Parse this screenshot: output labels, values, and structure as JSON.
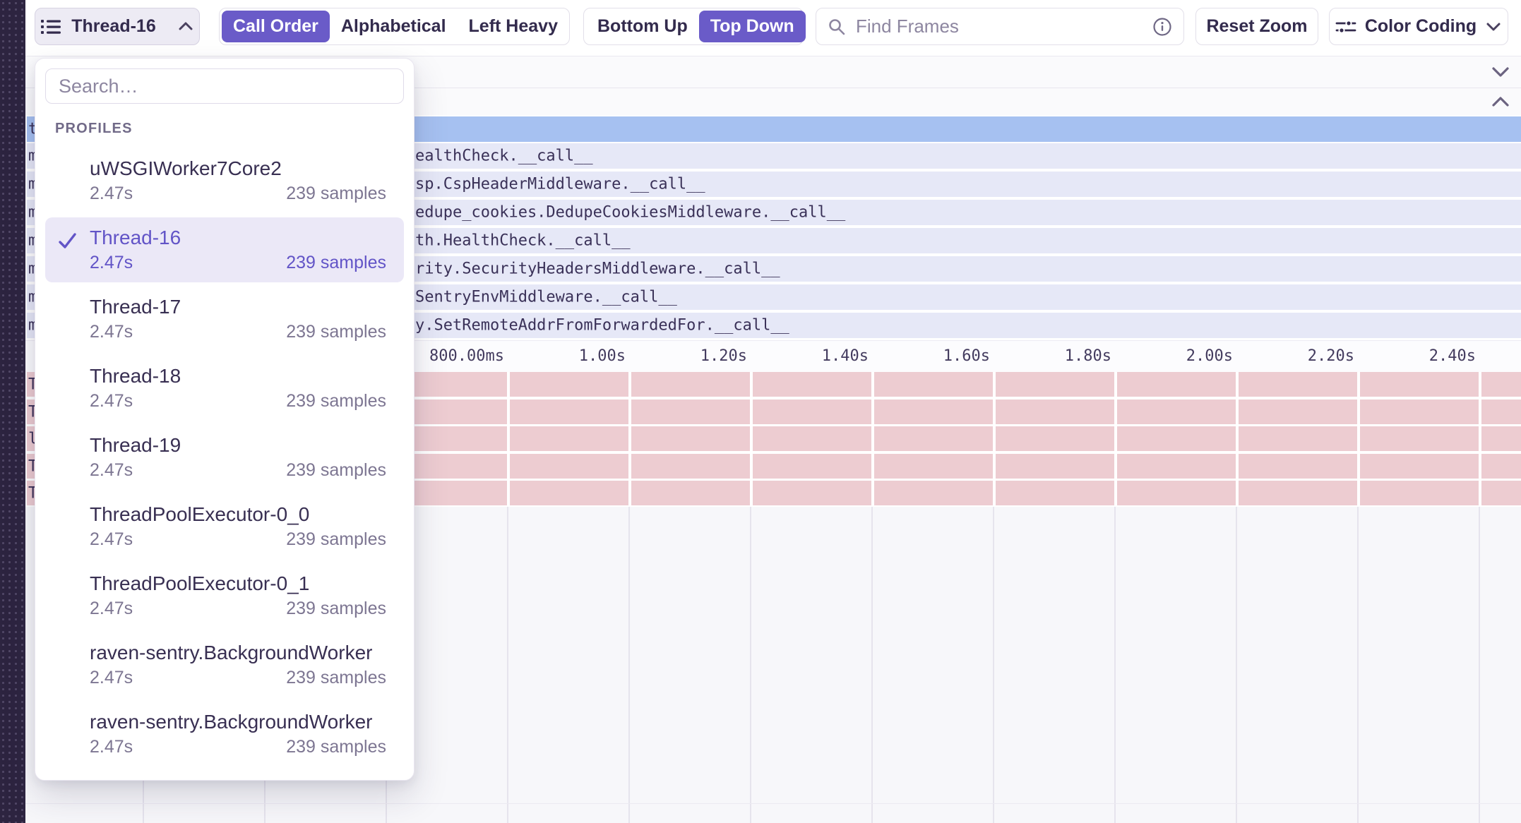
{
  "colors": {
    "accent": "#6a5bc8",
    "selection-blue": "#a6c1f1",
    "frame-lavender": "#e6e8f7",
    "frame-pink": "#edccd1",
    "sidebar": "#2d2440"
  },
  "toolbar": {
    "thread_label": "Thread-16",
    "call_order": "Call Order",
    "alphabetical": "Alphabetical",
    "left_heavy": "Left Heavy",
    "bottom_up": "Bottom Up",
    "top_down": "Top Down",
    "find_frames_placeholder": "Find Frames",
    "reset_zoom": "Reset Zoom",
    "color_coding": "Color Coding"
  },
  "dropdown": {
    "search_placeholder": "Search…",
    "section_label": "PROFILES",
    "items": [
      {
        "name": "uWSGIWorker7Core2",
        "duration": "2.47s",
        "samples": "239 samples",
        "selected": false
      },
      {
        "name": "Thread-16",
        "duration": "2.47s",
        "samples": "239 samples",
        "selected": true
      },
      {
        "name": "Thread-17",
        "duration": "2.47s",
        "samples": "239 samples",
        "selected": false
      },
      {
        "name": "Thread-18",
        "duration": "2.47s",
        "samples": "239 samples",
        "selected": false
      },
      {
        "name": "Thread-19",
        "duration": "2.47s",
        "samples": "239 samples",
        "selected": false
      },
      {
        "name": "ThreadPoolExecutor-0_0",
        "duration": "2.47s",
        "samples": "239 samples",
        "selected": false
      },
      {
        "name": "ThreadPoolExecutor-0_1",
        "duration": "2.47s",
        "samples": "239 samples",
        "selected": false
      },
      {
        "name": "raven-sentry.BackgroundWorker",
        "duration": "2.47s",
        "samples": "239 samples",
        "selected": false
      },
      {
        "name": "raven-sentry.BackgroundWorker",
        "duration": "2.47s",
        "samples": "239 samples",
        "selected": false
      }
    ]
  },
  "flame": {
    "root_fragment": "t",
    "rows": [
      {
        "left": "m",
        "text": "ealthCheck.__call__"
      },
      {
        "left": "m",
        "text": "sp.CspHeaderMiddleware.__call__"
      },
      {
        "left": "m",
        "text": "edupe_cookies.DedupeCookiesMiddleware.__call__"
      },
      {
        "left": "m",
        "text": "th.HealthCheck.__call__"
      },
      {
        "left": "m",
        "text": "rity.SecurityHeadersMiddleware.__call__"
      },
      {
        "left": "m",
        "text": "SentryEnvMiddleware.__call__"
      },
      {
        "left": "m",
        "text": "y.SetRemoteAddrFromForwardedFor.__call__"
      }
    ],
    "pink_rows": [
      {
        "left": "T"
      },
      {
        "left": "T"
      },
      {
        "left": "l"
      },
      {
        "left": "T"
      },
      {
        "left": "T"
      }
    ]
  },
  "axis": {
    "labels": [
      "800.00ms",
      "1.00s",
      "1.20s",
      "1.40s",
      "1.60s",
      "1.80s",
      "2.00s",
      "2.20s",
      "2.40s"
    ]
  }
}
